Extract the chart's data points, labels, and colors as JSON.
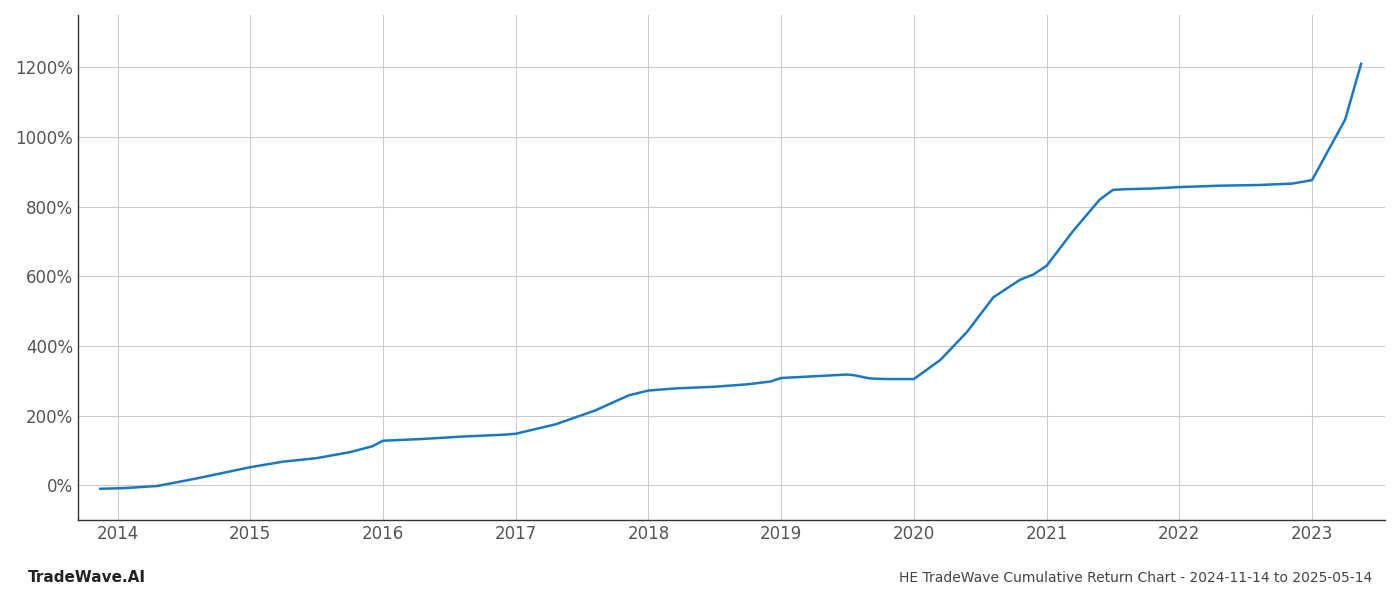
{
  "x": [
    2013.87,
    2014.05,
    2014.3,
    2014.6,
    2014.85,
    2015.0,
    2015.25,
    2015.5,
    2015.75,
    2015.92,
    2016.0,
    2016.3,
    2016.6,
    2016.9,
    2017.0,
    2017.3,
    2017.6,
    2017.85,
    2018.0,
    2018.2,
    2018.5,
    2018.75,
    2018.92,
    2019.0,
    2019.2,
    2019.4,
    2019.5,
    2019.55,
    2019.6,
    2019.65,
    2019.7,
    2019.8,
    2019.9,
    2020.0,
    2020.2,
    2020.4,
    2020.6,
    2020.8,
    2020.9,
    2021.0,
    2021.2,
    2021.4,
    2021.5,
    2021.6,
    2021.8,
    2021.9,
    2022.0,
    2022.3,
    2022.6,
    2022.85,
    2023.0,
    2023.25,
    2023.37
  ],
  "y": [
    -10,
    -8,
    -2,
    20,
    40,
    52,
    68,
    78,
    95,
    112,
    128,
    133,
    140,
    145,
    148,
    175,
    215,
    258,
    272,
    278,
    283,
    290,
    298,
    308,
    312,
    316,
    318,
    316,
    312,
    308,
    306,
    305,
    305,
    305,
    360,
    440,
    540,
    590,
    605,
    630,
    730,
    820,
    848,
    850,
    852,
    854,
    856,
    860,
    862,
    866,
    876,
    1050,
    1210
  ],
  "line_color": "#1a78c2",
  "line_width": 1.8,
  "background_color": "#ffffff",
  "grid_color": "#cccccc",
  "title": "HE TradeWave Cumulative Return Chart - 2024-11-14 to 2025-05-14",
  "watermark": "TradeWave.AI",
  "yticks": [
    0,
    200,
    400,
    600,
    800,
    1000,
    1200
  ],
  "ytick_labels": [
    "0%",
    "200%",
    "400%",
    "600%",
    "800%",
    "1000%",
    "1200%"
  ],
  "xticks": [
    2014,
    2015,
    2016,
    2017,
    2018,
    2019,
    2020,
    2021,
    2022,
    2023
  ],
  "xlim": [
    2013.7,
    2023.55
  ],
  "ylim": [
    -100,
    1350
  ]
}
